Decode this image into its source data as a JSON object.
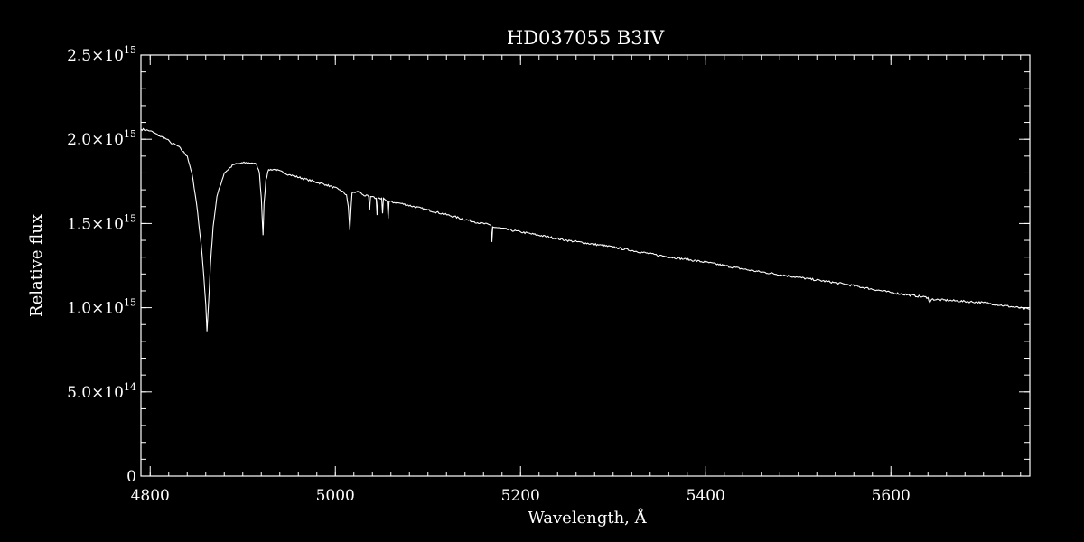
{
  "chart_data": {
    "type": "line",
    "title": "HD037055   B3IV",
    "xlabel": "Wavelength, Å",
    "ylabel": "Relative flux",
    "xlim": [
      4790,
      5750
    ],
    "ylim": [
      0,
      2500000000000000.0
    ],
    "grid": false,
    "x_ticks": [
      {
        "value": 4800,
        "label": "4800"
      },
      {
        "value": 5000,
        "label": "5000"
      },
      {
        "value": 5200,
        "label": "5200"
      },
      {
        "value": 5400,
        "label": "5400"
      },
      {
        "value": 5600,
        "label": "5600"
      }
    ],
    "y_ticks": [
      {
        "value": 0,
        "mant": "0",
        "exp": ""
      },
      {
        "value": 500000000000000.0,
        "mant": "5.0×10",
        "exp": "14"
      },
      {
        "value": 1000000000000000.0,
        "mant": "1.0×10",
        "exp": "15"
      },
      {
        "value": 1500000000000000.0,
        "mant": "1.5×10",
        "exp": "15"
      },
      {
        "value": 2000000000000000.0,
        "mant": "2.0×10",
        "exp": "15"
      },
      {
        "value": 2500000000000000.0,
        "mant": "2.5×10",
        "exp": "15"
      }
    ],
    "x_minor_step": 20,
    "y_minor_step": 100000000000000.0,
    "series": [
      {
        "color": "#ffffff",
        "x": [
          4790,
          4800,
          4810,
          4818,
          4822,
          4830,
          4840,
          4845,
          4850,
          4855,
          4858,
          4860,
          4861.3,
          4863,
          4865,
          4868,
          4872,
          4880,
          4890,
          4900,
          4910,
          4915,
          4918,
          4920,
          4921.9,
          4923,
          4925,
          4928,
          4935,
          4950,
          4970,
          4990,
          5005,
          5012,
          5014,
          5015.7,
          5017,
          5018,
          5025,
          5030,
          5036,
          5037,
          5038,
          5044,
          5045,
          5046,
          5050,
          5051,
          5052,
          5056,
          5057,
          5058,
          5070,
          5100,
          5150,
          5168,
          5169,
          5170,
          5200,
          5250,
          5300,
          5350,
          5400,
          5450,
          5500,
          5550,
          5600,
          5640,
          5642,
          5644,
          5700,
          5750
        ],
        "y": [
          2060000000000000.0,
          2050000000000000.0,
          2020000000000000.0,
          2000000000000000.0,
          1980000000000000.0,
          1960000000000000.0,
          1900000000000000.0,
          1800000000000000.0,
          1620000000000000.0,
          1380000000000000.0,
          1180000000000000.0,
          1020000000000000.0,
          860000000000000.0,
          1020000000000000.0,
          1250000000000000.0,
          1480000000000000.0,
          1660000000000000.0,
          1800000000000000.0,
          1850000000000000.0,
          1860000000000000.0,
          1860000000000000.0,
          1850000000000000.0,
          1800000000000000.0,
          1650000000000000.0,
          1430000000000000.0,
          1620000000000000.0,
          1760000000000000.0,
          1820000000000000.0,
          1820000000000000.0,
          1790000000000000.0,
          1760000000000000.0,
          1730000000000000.0,
          1700000000000000.0,
          1670000000000000.0,
          1600000000000000.0,
          1460000000000000.0,
          1600000000000000.0,
          1680000000000000.0,
          1690000000000000.0,
          1670000000000000.0,
          1660000000000000.0,
          1580000000000000.0,
          1660000000000000.0,
          1650000000000000.0,
          1550000000000000.0,
          1650000000000000.0,
          1650000000000000.0,
          1560000000000000.0,
          1650000000000000.0,
          1630000000000000.0,
          1530000000000000.0,
          1630000000000000.0,
          1620000000000000.0,
          1580000000000000.0,
          1510000000000000.0,
          1490000000000000.0,
          1390000000000000.0,
          1480000000000000.0,
          1450000000000000.0,
          1400000000000000.0,
          1360000000000000.0,
          1310000000000000.0,
          1270000000000000.0,
          1220000000000000.0,
          1180000000000000.0,
          1140000000000000.0,
          1090000000000000.0,
          1060000000000000.0,
          1030000000000000.0,
          1050000000000000.0,
          1030000000000000.0,
          990000000000000.0
        ]
      }
    ]
  }
}
